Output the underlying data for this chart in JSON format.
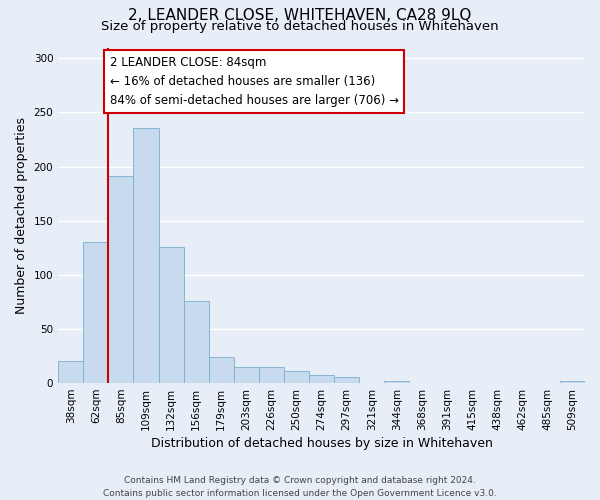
{
  "title": "2, LEANDER CLOSE, WHITEHAVEN, CA28 9LQ",
  "subtitle": "Size of property relative to detached houses in Whitehaven",
  "xlabel": "Distribution of detached houses by size in Whitehaven",
  "ylabel": "Number of detached properties",
  "bar_labels": [
    "38sqm",
    "62sqm",
    "85sqm",
    "109sqm",
    "132sqm",
    "156sqm",
    "179sqm",
    "203sqm",
    "226sqm",
    "250sqm",
    "274sqm",
    "297sqm",
    "321sqm",
    "344sqm",
    "368sqm",
    "391sqm",
    "415sqm",
    "438sqm",
    "462sqm",
    "485sqm",
    "509sqm"
  ],
  "bar_values": [
    20,
    130,
    191,
    236,
    126,
    76,
    24,
    15,
    15,
    11,
    7,
    6,
    0,
    2,
    0,
    0,
    0,
    0,
    0,
    0,
    2
  ],
  "bar_color": "#c8daed",
  "bar_edge_color": "#7aaed0",
  "vline_color": "#cc0000",
  "annotation_box_color": "#cc0000",
  "annotation_line1": "2 LEANDER CLOSE: 84sqm",
  "annotation_line2": "← 16% of detached houses are smaller (136)",
  "annotation_line3": "84% of semi-detached houses are larger (706) →",
  "ylim": [
    0,
    310
  ],
  "yticks": [
    0,
    50,
    100,
    150,
    200,
    250,
    300
  ],
  "footer_text": "Contains HM Land Registry data © Crown copyright and database right 2024.\nContains public sector information licensed under the Open Government Licence v3.0.",
  "bg_color": "#e8eef7",
  "plot_bg_color": "#e8eef7",
  "grid_color": "#ffffff",
  "title_fontsize": 11,
  "subtitle_fontsize": 9.5,
  "axis_label_fontsize": 9,
  "tick_fontsize": 7.5,
  "annotation_fontsize": 8.5,
  "footer_fontsize": 6.5
}
